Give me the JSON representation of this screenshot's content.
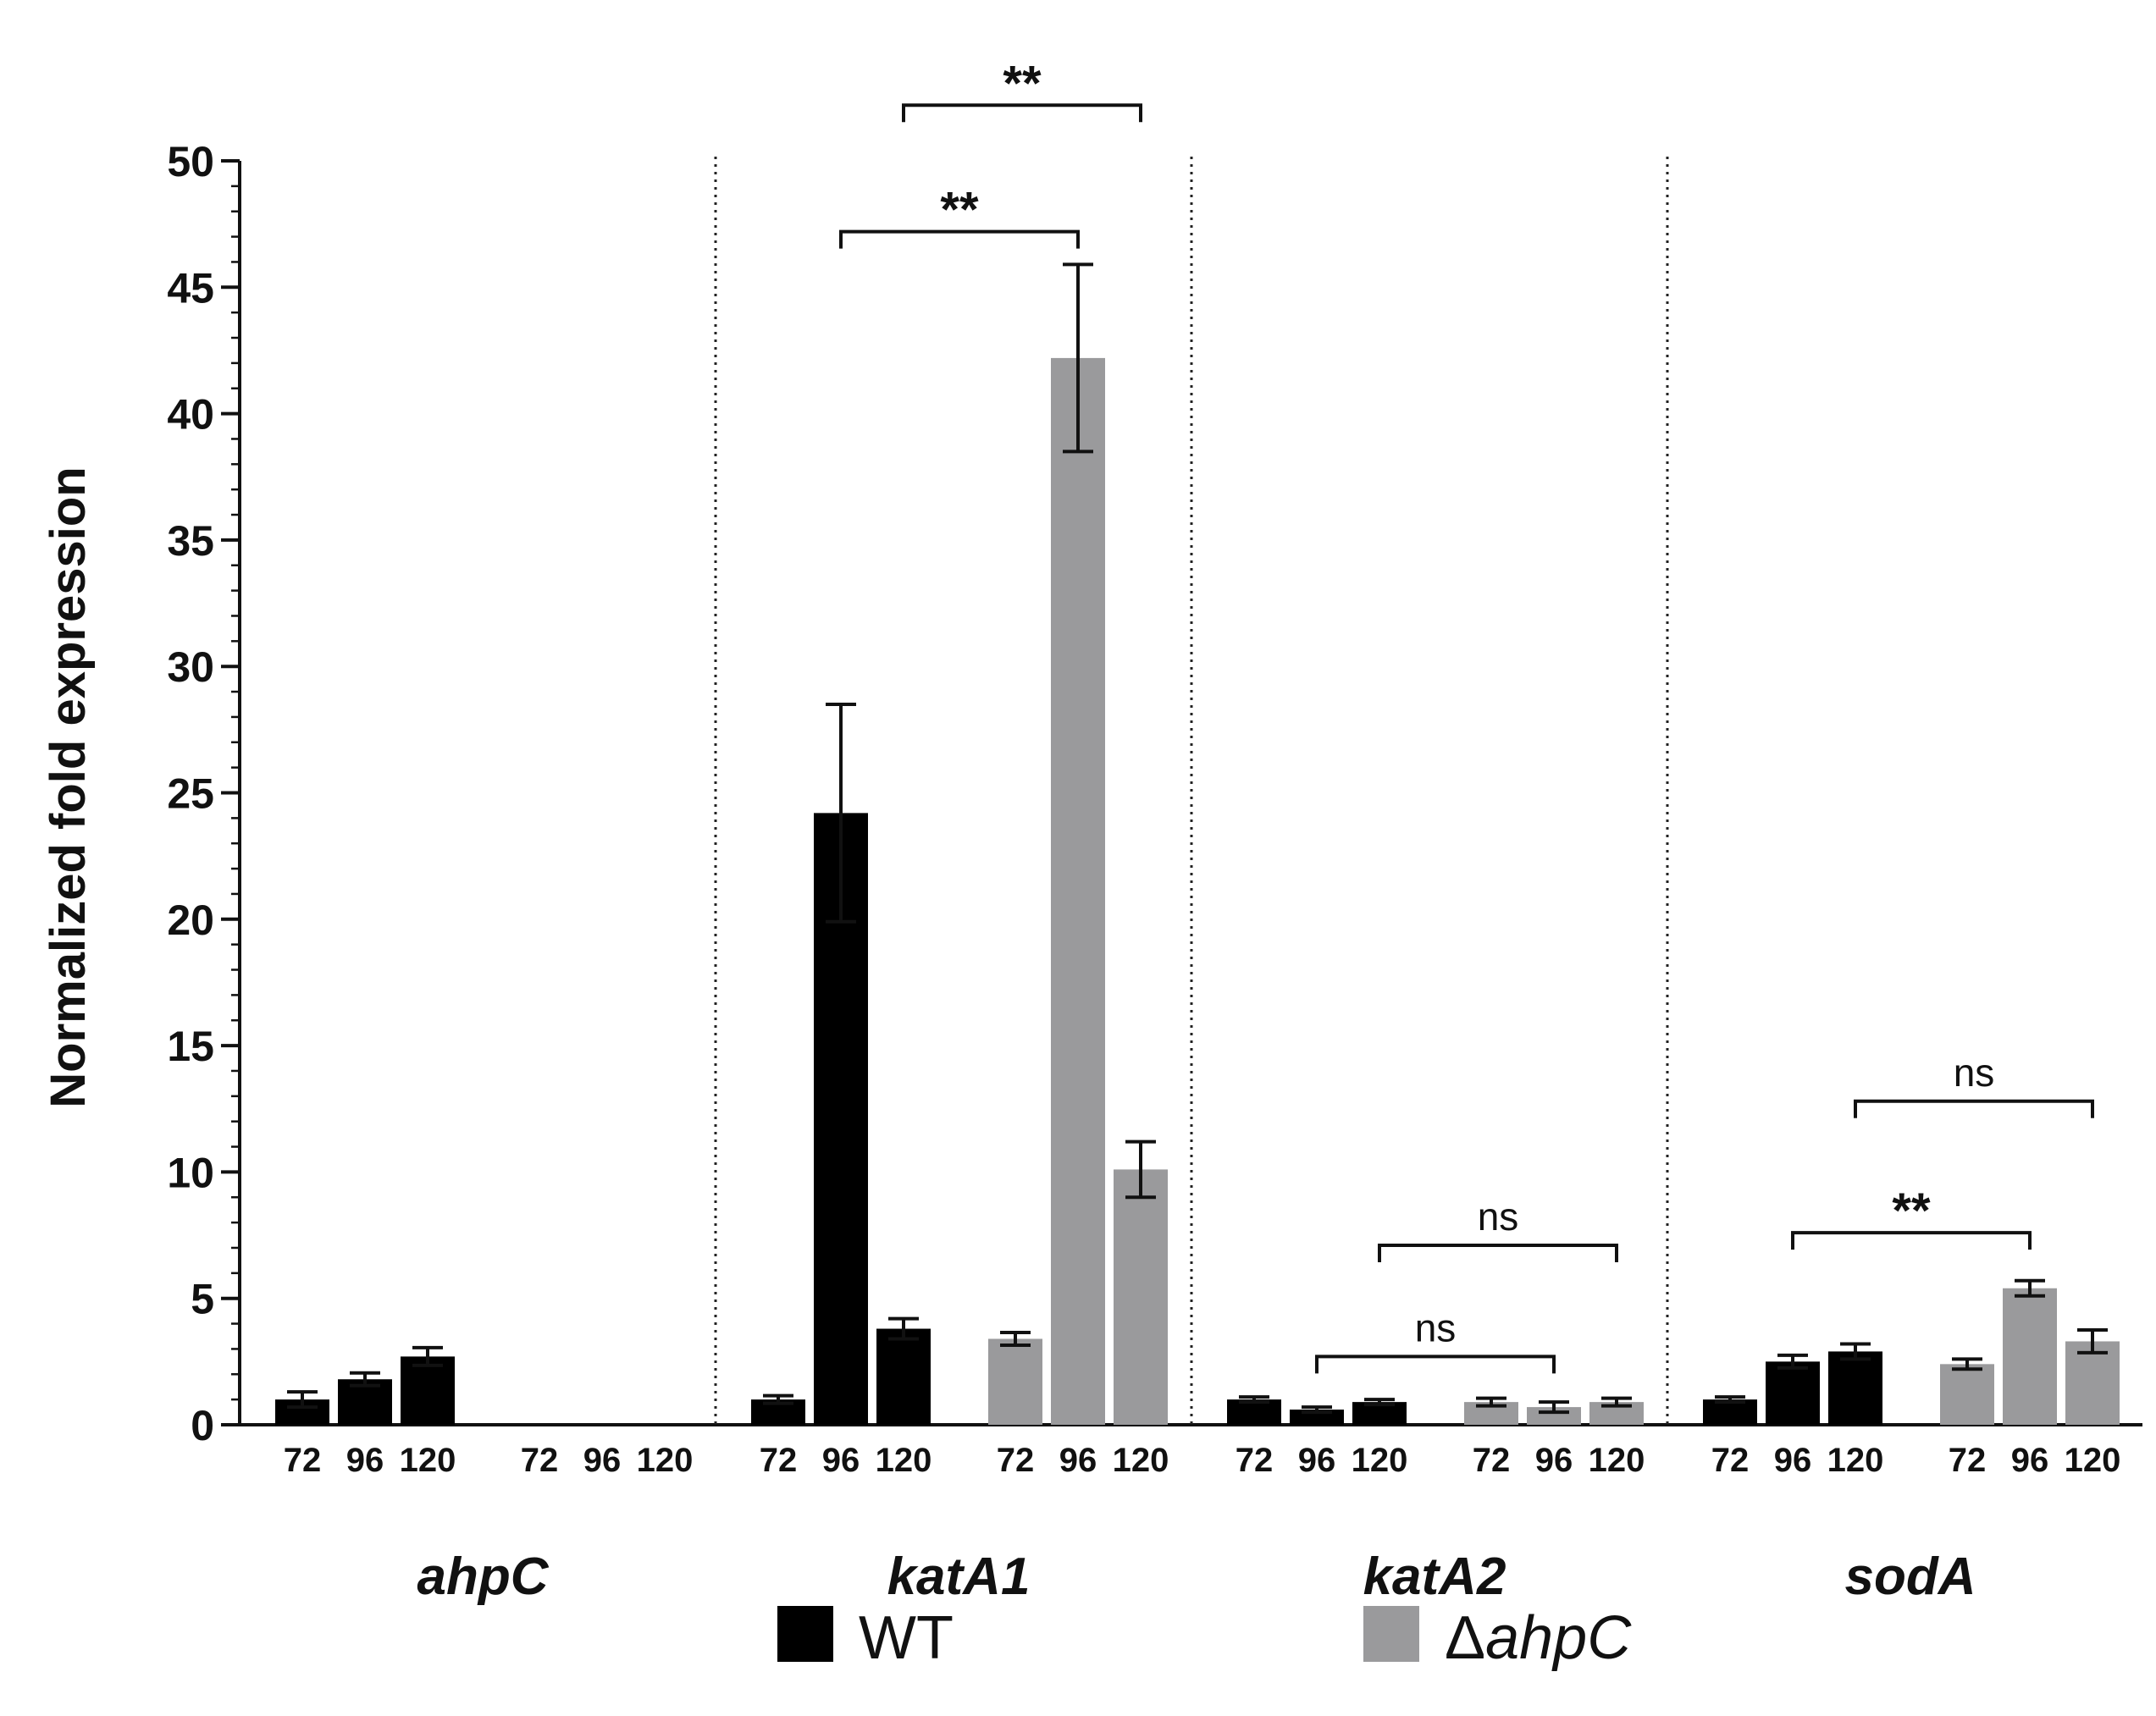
{
  "chart_data": {
    "type": "bar",
    "ylabel": "Normalized fold expression",
    "ylim": [
      0,
      50
    ],
    "yticks": [
      0,
      5,
      10,
      15,
      20,
      25,
      30,
      35,
      40,
      45,
      50
    ],
    "time_labels": [
      "72",
      "96",
      "120"
    ],
    "colors": {
      "WT": "#000000",
      "ahpC": "#9a9a9c"
    },
    "legend": {
      "position": "bottom",
      "entries": [
        {
          "key": "WT",
          "text": "WT"
        },
        {
          "key": "ahpC",
          "prefix": "Δ",
          "text": "ahpC"
        }
      ]
    },
    "groups": [
      {
        "gene": "ahpC",
        "WT": {
          "values": [
            1.0,
            1.8,
            2.7
          ],
          "errors": [
            0.3,
            0.25,
            0.35
          ]
        },
        "ahpC": {
          "values": [
            0,
            0,
            0
          ],
          "errors": [
            0,
            0,
            0
          ]
        }
      },
      {
        "gene": "katA1",
        "WT": {
          "values": [
            1.0,
            24.2,
            3.8
          ],
          "errors": [
            0.15,
            4.3,
            0.4
          ]
        },
        "ahpC": {
          "values": [
            3.4,
            42.2,
            10.1
          ],
          "errors": [
            0.25,
            3.7,
            1.1
          ]
        }
      },
      {
        "gene": "katA2",
        "WT": {
          "values": [
            1.0,
            0.6,
            0.9
          ],
          "errors": [
            0.1,
            0.1,
            0.1
          ]
        },
        "ahpC": {
          "values": [
            0.9,
            0.7,
            0.9
          ],
          "errors": [
            0.15,
            0.2,
            0.15
          ]
        }
      },
      {
        "gene": "sodA",
        "WT": {
          "values": [
            1.0,
            2.5,
            2.9
          ],
          "errors": [
            0.1,
            0.25,
            0.3
          ]
        },
        "ahpC": {
          "values": [
            2.4,
            5.4,
            3.3
          ],
          "errors": [
            0.2,
            0.3,
            0.45
          ]
        }
      }
    ],
    "significance": [
      {
        "group": 1,
        "from": "WT-96",
        "to": "ahpC-96",
        "label": "**",
        "y": 47.2
      },
      {
        "group": 1,
        "from": "WT-120",
        "to": "ahpC-120",
        "label": "**",
        "y": 52.2
      },
      {
        "group": 2,
        "from": "WT-96",
        "to": "ahpC-96",
        "label": "ns",
        "y": 2.7
      },
      {
        "group": 2,
        "from": "WT-120",
        "to": "ahpC-120",
        "label": "ns",
        "y": 7.1
      },
      {
        "group": 3,
        "from": "WT-96",
        "to": "ahpC-96",
        "label": "**",
        "y": 7.6
      },
      {
        "group": 3,
        "from": "WT-120",
        "to": "ahpC-120",
        "label": "ns",
        "y": 12.8
      }
    ]
  }
}
